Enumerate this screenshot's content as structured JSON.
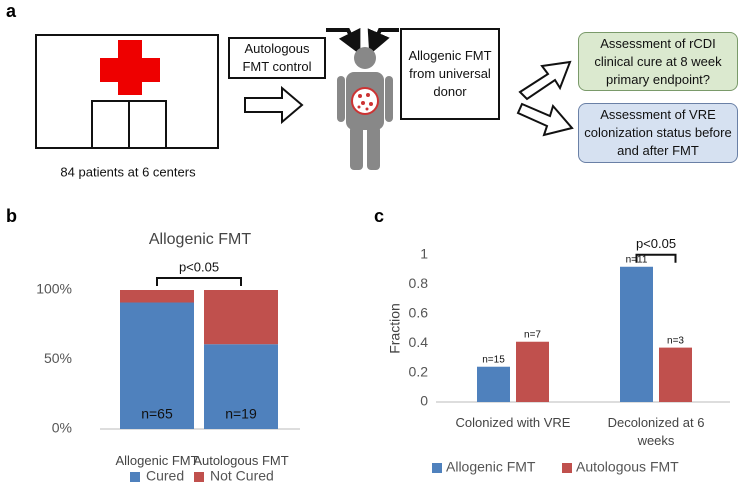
{
  "panel_labels": [
    "a",
    "b",
    "c"
  ],
  "diagram": {
    "hospital_label": "84 patients at 6 centers",
    "autologous_box": "Autologous FMT control",
    "allogenic_box": "Allogenic FMT from universal donor",
    "outcome_1": "Assessment of rCDI clinical cure at 8 week primary endpoint?",
    "outcome_2": "Assessment of VRE colonization status before and after FMT"
  },
  "chart_data": [
    {
      "type": "bar",
      "stacked": true,
      "title": "Allogenic FMT",
      "categories": [
        "Allogenic FMT",
        "Autologous FMT"
      ],
      "series": [
        {
          "name": "Cured",
          "color": "#4f81bd",
          "values": [
            91,
            61
          ],
          "bar_labels": [
            "n=65",
            "n=19"
          ]
        },
        {
          "name": "Not Cured",
          "color": "#c0504d",
          "values": [
            9,
            39
          ]
        }
      ],
      "ylim": [
        0,
        100
      ],
      "yticks": [
        {
          "value": 0,
          "label": "0%"
        },
        {
          "value": 50,
          "label": "50%"
        },
        {
          "value": 100,
          "label": "100%"
        }
      ],
      "annotation": "p<0.05",
      "legend": "bottom",
      "grid": false
    },
    {
      "type": "bar",
      "stacked": false,
      "y_label": "Fraction",
      "categories": [
        "Colonized with VRE",
        "Decolonized at 6 weeks"
      ],
      "series": [
        {
          "name": "Allogenic FMT",
          "color": "#4f81bd",
          "values": [
            0.24,
            0.92
          ],
          "bar_labels": [
            "n=15",
            "n=11"
          ]
        },
        {
          "name": "Autologous FMT",
          "color": "#c0504d",
          "values": [
            0.41,
            0.37
          ],
          "bar_labels": [
            "n=7",
            "n=3"
          ]
        }
      ],
      "ylim": [
        0,
        1
      ],
      "yticks": [
        0,
        0.2,
        0.4,
        0.6,
        0.8,
        1
      ],
      "annotation": "p<0.05",
      "legend": "bottom",
      "grid": false
    }
  ]
}
